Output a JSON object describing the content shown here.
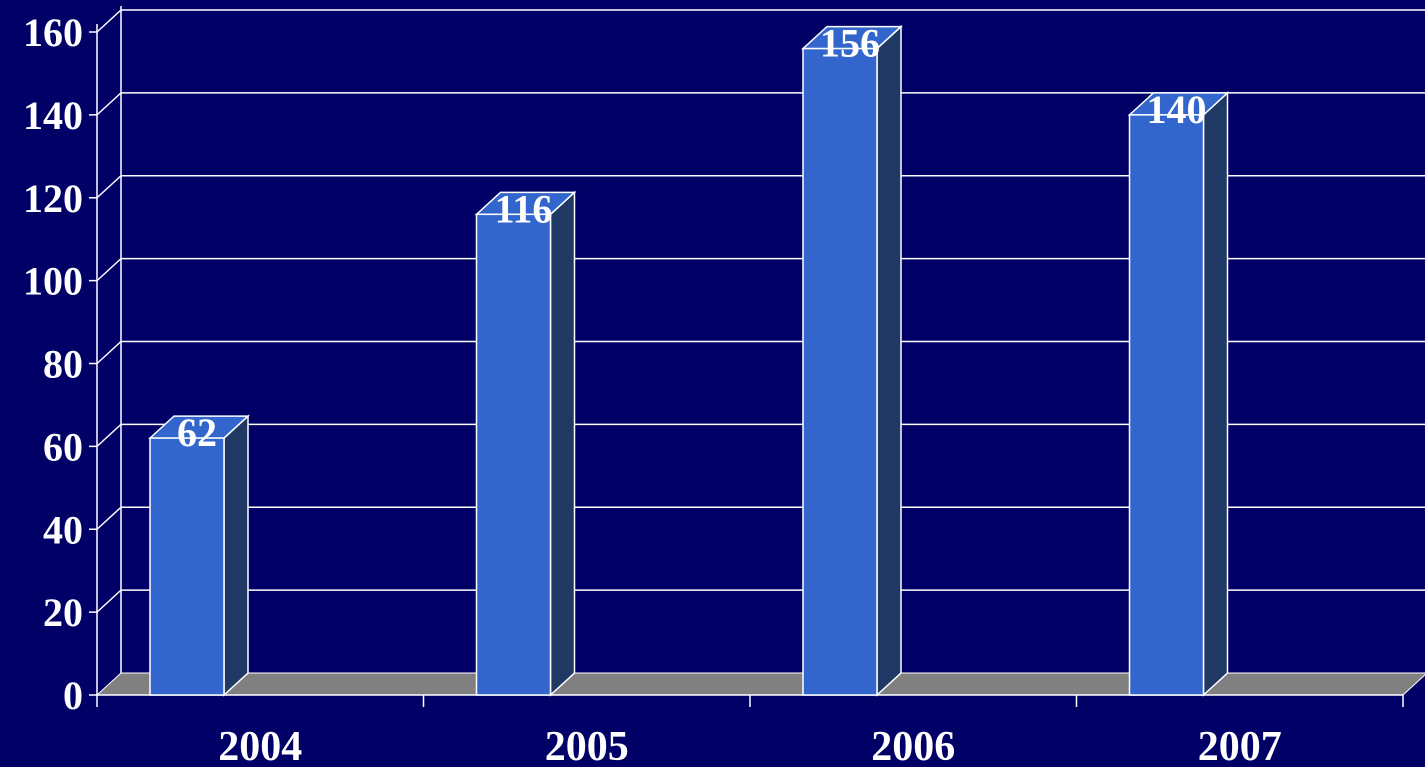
{
  "chart_data": {
    "type": "bar",
    "categories": [
      "2004",
      "2005",
      "2006",
      "2007"
    ],
    "values": [
      62,
      116,
      156,
      140
    ],
    "title": "",
    "xlabel": "",
    "ylabel": "",
    "ylim": [
      0,
      160
    ],
    "yticks": [
      "0",
      "20",
      "40",
      "60",
      "80",
      "100",
      "120",
      "140",
      "160"
    ],
    "grid": true,
    "legend": "none",
    "data_labels": [
      "62",
      "116",
      "156",
      "140"
    ]
  },
  "colors": {
    "background": "#000066",
    "bar_front": "#3366CC",
    "bar_side": "#1F3864",
    "bar_top": "#3366CC",
    "floor": "#808080",
    "gridline": "#FFFFFF",
    "text": "#FFFFFF"
  }
}
